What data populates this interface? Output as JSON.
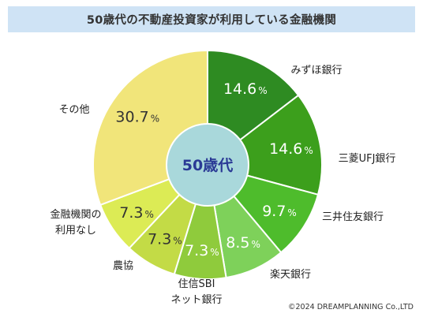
{
  "header": {
    "title": "50歳代の不動産投資家が利用している金融機関"
  },
  "footer": {
    "copyright": "©2024 DREAMPLANNING Co.,LTD"
  },
  "chart_data": {
    "type": "pie",
    "title": "50歳代の不動産投資家が利用している金融機関",
    "center_label": "50歳代",
    "unit": "%",
    "start_angle": "12 o'clock",
    "direction": "clockwise",
    "slices": [
      {
        "name": "みずほ銀行",
        "label_lines": [
          "みずほ銀行"
        ],
        "value": 14.6,
        "value_text": "14.6",
        "color": "#2e8b22",
        "text_color": "#ffffff"
      },
      {
        "name": "三菱UFJ銀行",
        "label_lines": [
          "三菱UFJ銀行"
        ],
        "value": 14.6,
        "value_text": "14.6",
        "color": "#3c9f1c",
        "text_color": "#ffffff"
      },
      {
        "name": "三井住友銀行",
        "label_lines": [
          "三井住友銀行"
        ],
        "value": 9.7,
        "value_text": "9.7",
        "color": "#4ebc2c",
        "text_color": "#ffffff"
      },
      {
        "name": "楽天銀行",
        "label_lines": [
          "楽天銀行"
        ],
        "value": 8.5,
        "value_text": "8.5",
        "color": "#7ed15a",
        "text_color": "#ffffff"
      },
      {
        "name": "住信SBIネット銀行",
        "label_lines": [
          "住信SBI",
          "ネット銀行"
        ],
        "value": 7.3,
        "value_text": "7.3",
        "color": "#8fcb3c",
        "text_color": "#ffffff"
      },
      {
        "name": "農協",
        "label_lines": [
          "農協"
        ],
        "value": 7.3,
        "value_text": "7.3",
        "color": "#c3db46",
        "text_color": "#333333"
      },
      {
        "name": "金融機関の利用なし",
        "label_lines": [
          "金融機関の",
          "利用なし"
        ],
        "value": 7.3,
        "value_text": "7.3",
        "color": "#dceb55",
        "text_color": "#333333"
      },
      {
        "name": "その他",
        "label_lines": [
          "その他"
        ],
        "value": 30.7,
        "value_text": "30.7",
        "color": "#f1e57a",
        "text_color": "#333333"
      }
    ]
  }
}
